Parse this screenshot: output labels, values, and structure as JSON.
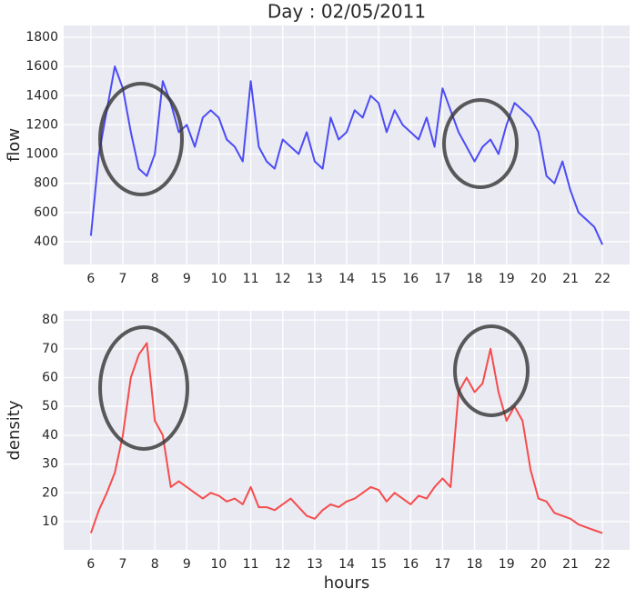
{
  "chart_data": [
    {
      "type": "line",
      "title": "Day : 02/05/2011",
      "y_label": "flow",
      "x": [
        6,
        6.25,
        6.5,
        6.75,
        7,
        7.25,
        7.5,
        7.75,
        8,
        8.25,
        8.5,
        8.75,
        9,
        9.25,
        9.5,
        9.75,
        10,
        10.25,
        10.5,
        10.75,
        11,
        11.25,
        11.5,
        11.75,
        12,
        12.25,
        12.5,
        12.75,
        13,
        13.25,
        13.5,
        13.75,
        14,
        14.25,
        14.5,
        14.75,
        15,
        15.25,
        15.5,
        15.75,
        16,
        16.25,
        16.5,
        16.75,
        17,
        17.25,
        17.5,
        17.75,
        18,
        18.25,
        18.5,
        18.75,
        19,
        19.25,
        19.5,
        19.75,
        20,
        20.25,
        20.5,
        20.75,
        21,
        21.25,
        21.5,
        21.75,
        22
      ],
      "series": [
        {
          "color": "#4343f5",
          "values": [
            440,
            1000,
            1300,
            1600,
            1450,
            1150,
            900,
            850,
            1000,
            1500,
            1350,
            1150,
            1200,
            1050,
            1250,
            1300,
            1250,
            1100,
            1050,
            950,
            1500,
            1050,
            950,
            900,
            1100,
            1050,
            1000,
            1150,
            950,
            900,
            1250,
            1100,
            1150,
            1300,
            1250,
            1400,
            1350,
            1150,
            1300,
            1200,
            1150,
            1100,
            1250,
            1050,
            1450,
            1300,
            1150,
            1050,
            950,
            1050,
            1100,
            1000,
            1200,
            1350,
            1300,
            1250,
            1150,
            850,
            800,
            950,
            750,
            600,
            550,
            500,
            380
          ]
        }
      ],
      "xlim": [
        5.15,
        22.85
      ],
      "xticks": [
        6,
        7,
        8,
        9,
        10,
        11,
        12,
        13,
        14,
        15,
        16,
        17,
        18,
        19,
        20,
        21,
        22
      ],
      "ylim": [
        244,
        1881
      ],
      "yticks": [
        400,
        600,
        800,
        1000,
        1200,
        1400,
        1600,
        1800
      ],
      "grid": true
    },
    {
      "type": "line",
      "y_label": "density",
      "x_label": "hours",
      "x": [
        6,
        6.25,
        6.5,
        6.75,
        7,
        7.25,
        7.5,
        7.75,
        8,
        8.25,
        8.5,
        8.75,
        9,
        9.25,
        9.5,
        9.75,
        10,
        10.25,
        10.5,
        10.75,
        11,
        11.25,
        11.5,
        11.75,
        12,
        12.25,
        12.5,
        12.75,
        13,
        13.25,
        13.5,
        13.75,
        14,
        14.25,
        14.5,
        14.75,
        15,
        15.25,
        15.5,
        15.75,
        16,
        16.25,
        16.5,
        16.75,
        17,
        17.25,
        17.5,
        17.75,
        18,
        18.25,
        18.5,
        18.75,
        19,
        19.25,
        19.5,
        19.75,
        20,
        20.25,
        20.5,
        20.75,
        21,
        21.25,
        21.5,
        21.75,
        22
      ],
      "series": [
        {
          "color": "#f54343",
          "values": [
            6,
            14,
            20,
            27,
            40,
            60,
            68,
            72,
            45,
            40,
            22,
            24,
            22,
            20,
            18,
            20,
            19,
            17,
            18,
            16,
            22,
            15,
            15,
            14,
            16,
            18,
            15,
            12,
            11,
            14,
            16,
            15,
            17,
            18,
            20,
            22,
            21,
            17,
            20,
            18,
            16,
            19,
            18,
            22,
            25,
            22,
            55,
            60,
            55,
            58,
            70,
            55,
            45,
            50,
            45,
            28,
            18,
            17,
            13,
            12,
            11,
            9,
            8,
            7,
            6
          ]
        }
      ],
      "xlim": [
        5.15,
        22.85
      ],
      "xticks": [
        6,
        7,
        8,
        9,
        10,
        11,
        12,
        13,
        14,
        15,
        16,
        17,
        18,
        19,
        20,
        21,
        22
      ],
      "ylim": [
        0.2,
        83.2
      ],
      "yticks": [
        10,
        20,
        30,
        40,
        50,
        60,
        70,
        80
      ],
      "grid": true
    }
  ]
}
